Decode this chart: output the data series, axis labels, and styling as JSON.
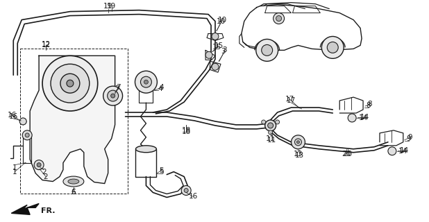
{
  "background_color": "#ffffff",
  "line_color": "#1a1a1a",
  "fig_width": 6.18,
  "fig_height": 3.2,
  "dpi": 100
}
